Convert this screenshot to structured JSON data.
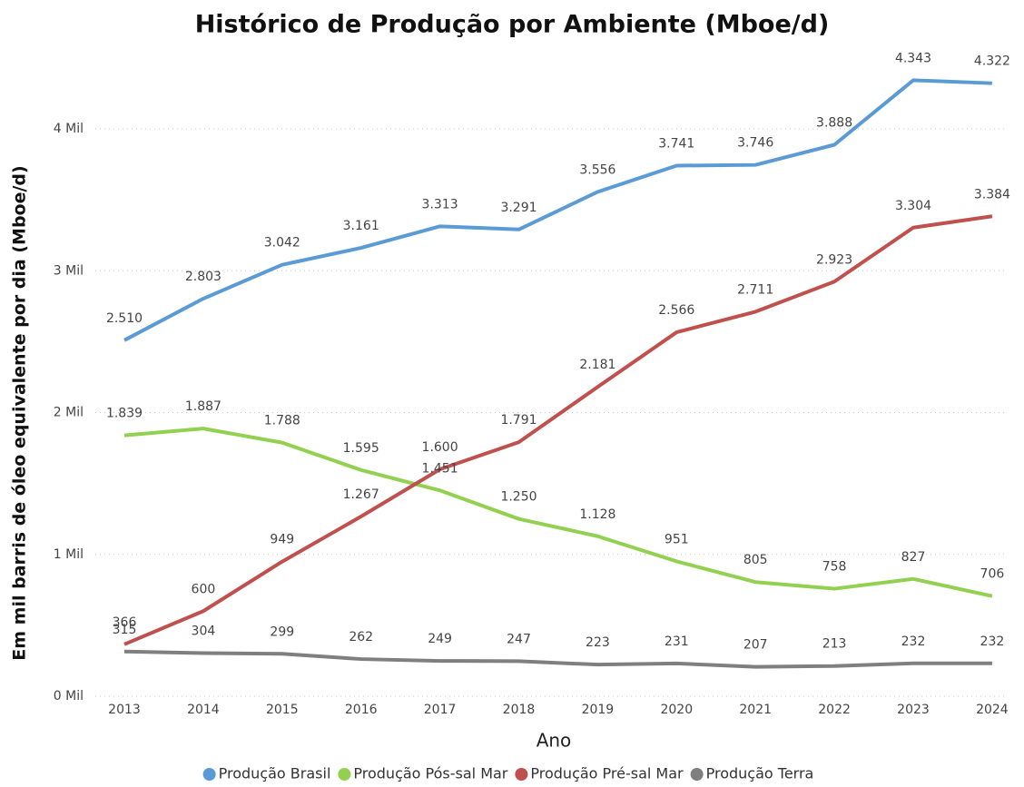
{
  "chart_data": {
    "type": "line",
    "title": "Histórico de Produção por Ambiente (Mboe/d)",
    "x_label": "Ano",
    "y_label": "Em mil barris de óleo equivalente por dia (Mboe/d)",
    "categories": [
      "2013",
      "2014",
      "2015",
      "2016",
      "2017",
      "2018",
      "2019",
      "2020",
      "2021",
      "2022",
      "2023",
      "2024"
    ],
    "ylim": [
      0,
      4400
    ],
    "yticks": [
      {
        "value": 0,
        "label": "0 Mil"
      },
      {
        "value": 1000,
        "label": "1 Mil"
      },
      {
        "value": 2000,
        "label": "2 Mil"
      },
      {
        "value": 3000,
        "label": "3 Mil"
      },
      {
        "value": 4000,
        "label": "4 Mil"
      }
    ],
    "grid": true,
    "legend": "bottom",
    "series": [
      {
        "name": "Produção Brasil",
        "color": "#5b9bd5",
        "values": [
          2510,
          2803,
          3042,
          3161,
          3313,
          3291,
          3556,
          3741,
          3746,
          3888,
          4343,
          4322
        ],
        "value_labels": [
          "2.510",
          "2.803",
          "3.042",
          "3.161",
          "3.313",
          "3.291",
          "3.556",
          "3.741",
          "3.746",
          "3.888",
          "4.343",
          "4.322"
        ]
      },
      {
        "name": "Produção Pós-sal Mar",
        "color": "#92d050",
        "values": [
          1839,
          1887,
          1788,
          1595,
          1451,
          1250,
          1128,
          951,
          805,
          758,
          827,
          706
        ],
        "value_labels": [
          "1.839",
          "1.887",
          "1.788",
          "1.595",
          "1.451",
          "1.250",
          "1.128",
          "951",
          "805",
          "758",
          "827",
          "706"
        ]
      },
      {
        "name": "Produção Pré-sal Mar",
        "color": "#c0504d",
        "values": [
          366,
          600,
          949,
          1267,
          1600,
          1791,
          2181,
          2566,
          2711,
          2923,
          3304,
          3384
        ],
        "value_labels": [
          "366",
          "600",
          "949",
          "1.267",
          "1.600",
          "1.791",
          "2.181",
          "2.566",
          "2.711",
          "2.923",
          "3.304",
          "3.384"
        ]
      },
      {
        "name": "Produção Terra",
        "color": "#7f7f7f",
        "values": [
          315,
          304,
          299,
          262,
          249,
          247,
          223,
          231,
          207,
          213,
          232,
          232
        ],
        "value_labels": [
          "315",
          "304",
          "299",
          "262",
          "249",
          "247",
          "223",
          "231",
          "207",
          "213",
          "232",
          "232"
        ]
      }
    ]
  }
}
